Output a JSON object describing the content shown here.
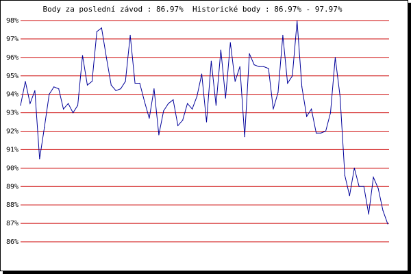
{
  "title": "Body za poslední závod : 86.97%  Historické body : 86.97% - 97.97%",
  "colors": {
    "grid": "#cc0000",
    "line": "#000099",
    "axis": "#000000",
    "background": "#ffffff"
  },
  "chart_data": {
    "type": "line",
    "title": "Body za poslední závod : 86.97%  Historické body : 86.97% - 97.97%",
    "xlabel": "",
    "ylabel": "",
    "ylim": [
      86,
      98
    ],
    "yticks": [
      {
        "value": 98,
        "label": "98%"
      },
      {
        "value": 97,
        "label": "97%"
      },
      {
        "value": 96,
        "label": "96%"
      },
      {
        "value": 95,
        "label": "95%"
      },
      {
        "value": 94,
        "label": "94%"
      },
      {
        "value": 93,
        "label": "93%"
      },
      {
        "value": 92,
        "label": "92%"
      },
      {
        "value": 91,
        "label": "91%"
      },
      {
        "value": 90,
        "label": "90%"
      },
      {
        "value": 89,
        "label": "89%"
      },
      {
        "value": 88,
        "label": "88%"
      },
      {
        "value": 87,
        "label": "87%"
      },
      {
        "value": 86,
        "label": "86%"
      }
    ],
    "grid": true,
    "series": [
      {
        "values": [
          93.4,
          94.7,
          93.5,
          94.2,
          90.5,
          92.2,
          94.0,
          94.4,
          94.3,
          93.2,
          93.5,
          93.0,
          93.4,
          96.1,
          94.5,
          94.7,
          97.4,
          97.6,
          96.0,
          94.5,
          94.2,
          94.3,
          94.7,
          97.2,
          94.6,
          94.6,
          93.6,
          92.7,
          94.3,
          91.8,
          93.1,
          93.5,
          93.7,
          92.3,
          92.6,
          93.5,
          93.2,
          93.9,
          95.1,
          92.5,
          95.8,
          93.4,
          96.4,
          93.8,
          96.8,
          94.7,
          95.5,
          91.7,
          96.2,
          95.6,
          95.5,
          95.5,
          95.4,
          93.2,
          94.1,
          97.2,
          94.6,
          95.0,
          97.97,
          94.4,
          92.8,
          93.2,
          91.9,
          91.9,
          92.0,
          93.0,
          96.0,
          93.9,
          89.6,
          88.5,
          90.0,
          89.0,
          89.0,
          87.5,
          89.5,
          88.9,
          87.7,
          86.97
        ]
      }
    ]
  }
}
